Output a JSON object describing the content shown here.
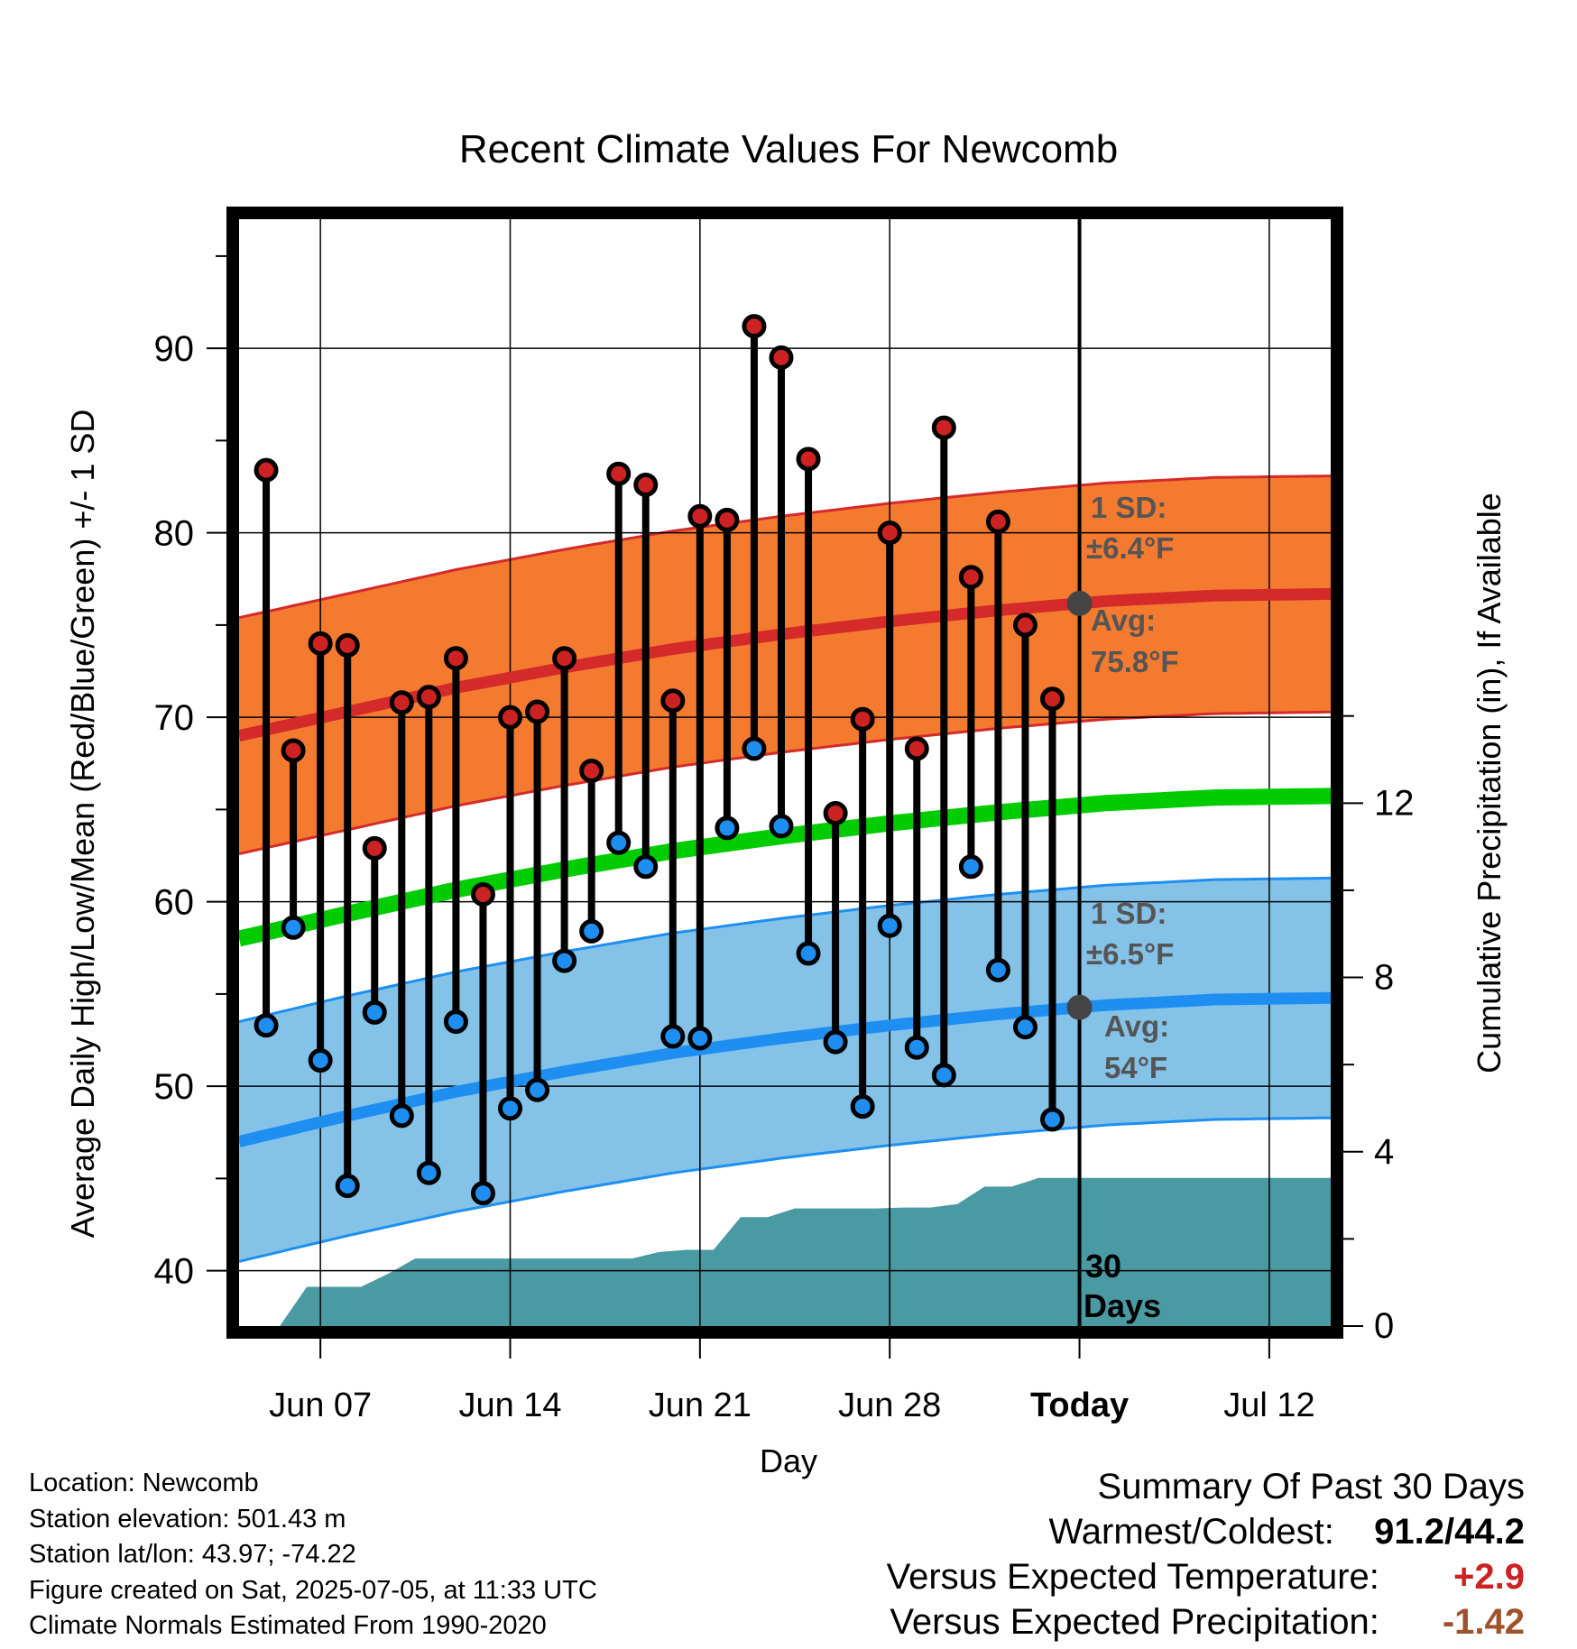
{
  "chart_data": {
    "type": "line",
    "title": "Recent Climate Values For Newcomb",
    "xlabel": "Day",
    "ylabel_left": "Average Daily High/Low/Mean (Red/Blue/Green) +/- 1 SD",
    "ylabel_right": "Cumulative Precipitation (in), If Available",
    "x_ticks": [
      "Jun 07",
      "Jun 14",
      "Jun 21",
      "Jun 28",
      "Today",
      "Jul 12"
    ],
    "y_ticks_left": [
      40,
      50,
      60,
      70,
      80,
      90
    ],
    "y_ticks_right": [
      0,
      4,
      8,
      12
    ],
    "ylim_left": [
      37,
      97
    ],
    "ylim_right": [
      0,
      25.4
    ],
    "xlim": [
      "Jun 04",
      "Jul 15"
    ],
    "grid": true,
    "observed": {
      "dates": [
        "Jun 05",
        "Jun 06",
        "Jun 07",
        "Jun 08",
        "Jun 09",
        "Jun 10",
        "Jun 11",
        "Jun 12",
        "Jun 13",
        "Jun 14",
        "Jun 15",
        "Jun 16",
        "Jun 17",
        "Jun 18",
        "Jun 19",
        "Jun 20",
        "Jun 21",
        "Jun 22",
        "Jun 23",
        "Jun 24",
        "Jun 25",
        "Jun 26",
        "Jun 27",
        "Jun 28",
        "Jun 29",
        "Jun 30",
        "Jul 01",
        "Jul 02",
        "Jul 03",
        "Jul 04"
      ],
      "highs": [
        83.4,
        68.2,
        74.0,
        73.9,
        62.9,
        70.8,
        71.1,
        73.2,
        60.4,
        70.0,
        70.3,
        73.2,
        67.1,
        83.2,
        82.6,
        70.9,
        80.9,
        80.7,
        91.2,
        89.5,
        84.0,
        64.8,
        69.9,
        80.0,
        68.3,
        85.7,
        77.6,
        80.6,
        75.0,
        71.0
      ],
      "lows": [
        53.3,
        58.6,
        51.4,
        44.6,
        54.0,
        48.4,
        45.3,
        53.5,
        44.2,
        48.8,
        49.8,
        56.8,
        58.4,
        63.2,
        61.9,
        52.7,
        52.6,
        64.0,
        68.3,
        64.1,
        57.2,
        52.4,
        48.9,
        58.7,
        52.1,
        50.6,
        61.9,
        56.3,
        53.2,
        48.2
      ]
    },
    "normals": {
      "x_days_from_start": [
        0,
        4,
        8,
        12,
        16,
        20,
        24,
        28,
        32,
        36,
        41
      ],
      "high_mean": [
        69.0,
        70.3,
        71.6,
        72.7,
        73.7,
        74.5,
        75.2,
        75.8,
        76.3,
        76.6,
        76.7
      ],
      "high_sd": 6.4,
      "low_mean": [
        47.0,
        48.4,
        49.7,
        50.8,
        51.8,
        52.6,
        53.3,
        53.9,
        54.4,
        54.7,
        54.8
      ],
      "low_sd": 6.5,
      "mean": [
        58.0,
        59.35,
        60.65,
        61.75,
        62.75,
        63.55,
        64.25,
        64.85,
        65.35,
        65.65,
        65.75
      ]
    },
    "precipitation": {
      "dates": [
        "Jun 04",
        "Jun 05",
        "Jun 06",
        "Jun 07",
        "Jun 08",
        "Jun 09",
        "Jun 10",
        "Jun 11",
        "Jun 12",
        "Jun 13",
        "Jun 14",
        "Jun 15",
        "Jun 16",
        "Jun 17",
        "Jun 18",
        "Jun 19",
        "Jun 20",
        "Jun 21",
        "Jun 22",
        "Jun 23",
        "Jun 24",
        "Jun 25",
        "Jun 26",
        "Jun 27",
        "Jun 28",
        "Jun 29",
        "Jun 30",
        "Jul 01",
        "Jul 02",
        "Jul 03",
        "Jul 04",
        "Jul 15"
      ],
      "values": [
        0,
        0,
        0.9,
        0.9,
        0.9,
        1.2,
        1.55,
        1.55,
        1.55,
        1.55,
        1.55,
        1.55,
        1.55,
        1.55,
        1.55,
        1.7,
        1.75,
        1.75,
        2.5,
        2.5,
        2.7,
        2.7,
        2.7,
        2.7,
        2.72,
        2.72,
        2.8,
        3.2,
        3.2,
        3.4,
        3.4,
        3.4
      ]
    },
    "annotations": {
      "high_sd_label": "1 SD:",
      "high_sd_value": "±6.4°F",
      "high_avg_label": "Avg:",
      "high_avg_value": "75.8°F",
      "low_sd_label": "1 SD:",
      "low_sd_value": "±6.5°F",
      "low_avg_label": "Avg:",
      "low_avg_value": "54°F",
      "days_label_1": "30",
      "days_label_2": "Days"
    },
    "colors": {
      "high_band": "#f47a2f",
      "high_line": "#d42a2a",
      "low_band": "#84c2e8",
      "low_line": "#1e8ff0",
      "mean_line": "#00cc00",
      "precip": "#4a9aa3",
      "high_dot": "#cc2222",
      "low_dot": "#1e8ff0",
      "annotation_text": "#555555",
      "avg_dot": "#444444"
    }
  },
  "footer": {
    "location": "Location: Newcomb",
    "elevation": "Station elevation: 501.43 m",
    "latlon": "Station lat/lon: 43.97; -74.22",
    "created": "Figure created on Sat, 2025-07-05, at 11:33 UTC",
    "normals": "Climate Normals Estimated From 1990-2020"
  },
  "summary": {
    "heading": "Summary Of Past 30 Days",
    "warm_cold_label": "Warmest/Coldest:",
    "warm_cold_value": "91.2/44.2",
    "temp_label": "Versus Expected Temperature:",
    "temp_value": "+2.9",
    "temp_color": "#cc2222",
    "precip_label": "Versus Expected Precipitation:",
    "precip_value": "-1.42",
    "precip_color": "#a0522d"
  }
}
